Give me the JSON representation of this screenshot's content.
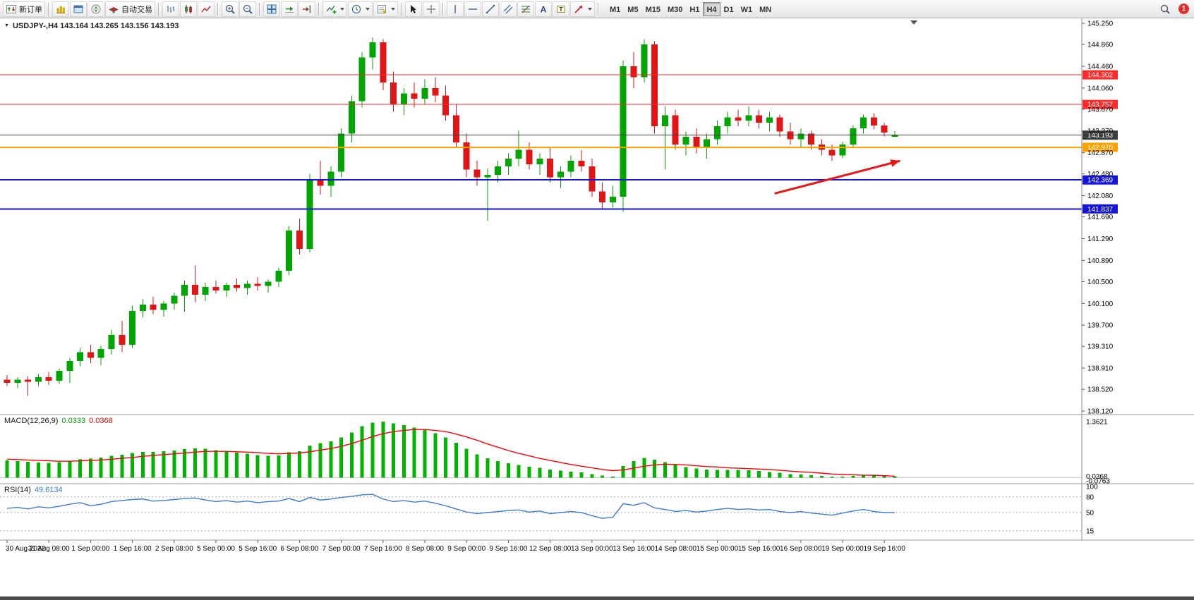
{
  "toolbar": {
    "new_order_label": "新订单",
    "auto_trading_label": "自动交易",
    "timeframes": [
      "M1",
      "M5",
      "M15",
      "M30",
      "H1",
      "H4",
      "D1",
      "W1",
      "MN"
    ],
    "active_timeframe": "H4",
    "notification_count": "1"
  },
  "panels": {
    "symbol_title": "USDJPY-,H4 143.164 143.265 143.156 143.193",
    "macd_name": "MACD(12,26,9)",
    "macd_value_main": "0.0333",
    "macd_value_signal": "0.0368",
    "rsi_name": "RSI(14)",
    "rsi_value": "49.6134"
  },
  "colors": {
    "candle_up": "#00a600",
    "candle_down": "#e01515",
    "macd_hist": "#00b400",
    "macd_signal": "#ff0000",
    "rsi_line": "#3b7bd4",
    "line_red": "#ff2a2a",
    "line_blue": "#1414dc",
    "line_orange": "#ffa200",
    "line_current": "#3c3c3c",
    "arrow": "#e81717",
    "axis_text": "#000000"
  },
  "chart_data": [
    {
      "id": "price",
      "type": "candlestick",
      "symbol": "USDJPY-",
      "timeframe": "H4",
      "ylim": [
        138.12,
        145.25
      ],
      "y_axis_labels": [
        "145.250",
        "144.860",
        "144.460",
        "144.060",
        "143.670",
        "143.270",
        "142.870",
        "142.480",
        "142.080",
        "141.690",
        "141.290",
        "140.890",
        "140.500",
        "140.100",
        "139.700",
        "139.310",
        "138.910",
        "138.520",
        "138.120"
      ],
      "time_labels": [
        {
          "index": 0,
          "label": "30 Aug 2022"
        },
        {
          "index": 4,
          "label": "31 Aug 08:00"
        },
        {
          "index": 8,
          "label": "1 Sep 00:00"
        },
        {
          "index": 12,
          "label": "1 Sep 16:00"
        },
        {
          "index": 16,
          "label": "2 Sep 08:00"
        },
        {
          "index": 20,
          "label": "5 Sep 00:00"
        },
        {
          "index": 24,
          "label": "5 Sep 16:00"
        },
        {
          "index": 28,
          "label": "6 Sep 08:00"
        },
        {
          "index": 32,
          "label": "7 Sep 00:00"
        },
        {
          "index": 36,
          "label": "7 Sep 16:00"
        },
        {
          "index": 40,
          "label": "8 Sep 08:00"
        },
        {
          "index": 44,
          "label": "9 Sep 00:00"
        },
        {
          "index": 48,
          "label": "9 Sep 16:00"
        },
        {
          "index": 52,
          "label": "12 Sep 08:00"
        },
        {
          "index": 56,
          "label": "13 Sep 00:00"
        },
        {
          "index": 60,
          "label": "13 Sep 16:00"
        },
        {
          "index": 64,
          "label": "14 Sep 08:00"
        },
        {
          "index": 68,
          "label": "15 Sep 00:00"
        },
        {
          "index": 72,
          "label": "15 Sep 16:00"
        },
        {
          "index": 76,
          "label": "16 Sep 08:00"
        },
        {
          "index": 80,
          "label": "19 Sep 00:00"
        },
        {
          "index": 84,
          "label": "19 Sep 16:00"
        }
      ],
      "candles": [
        [
          138.7,
          138.78,
          138.58,
          138.64
        ],
        [
          138.64,
          138.74,
          138.54,
          138.7
        ],
        [
          138.7,
          138.76,
          138.4,
          138.66
        ],
        [
          138.66,
          138.8,
          138.58,
          138.74
        ],
        [
          138.74,
          138.84,
          138.6,
          138.68
        ],
        [
          138.68,
          138.9,
          138.62,
          138.86
        ],
        [
          138.86,
          139.1,
          138.64,
          139.04
        ],
        [
          139.04,
          139.28,
          138.94,
          139.2
        ],
        [
          139.2,
          139.34,
          139.0,
          139.1
        ],
        [
          139.1,
          139.32,
          138.96,
          139.26
        ],
        [
          139.26,
          139.62,
          139.16,
          139.52
        ],
        [
          139.52,
          139.78,
          139.2,
          139.34
        ],
        [
          139.34,
          140.06,
          139.28,
          139.96
        ],
        [
          139.96,
          140.18,
          139.84,
          140.08
        ],
        [
          140.08,
          140.22,
          139.9,
          139.98
        ],
        [
          139.98,
          140.14,
          139.86,
          140.1
        ],
        [
          140.1,
          140.3,
          139.98,
          140.24
        ],
        [
          140.24,
          140.52,
          139.95,
          140.44
        ],
        [
          140.44,
          140.8,
          140.12,
          140.26
        ],
        [
          140.26,
          140.48,
          140.14,
          140.4
        ],
        [
          140.4,
          140.52,
          140.28,
          140.34
        ],
        [
          140.34,
          140.48,
          140.22,
          140.44
        ],
        [
          140.44,
          140.56,
          140.32,
          140.38
        ],
        [
          140.38,
          140.52,
          140.26,
          140.46
        ],
        [
          140.46,
          140.58,
          140.34,
          140.42
        ],
        [
          140.42,
          140.54,
          140.3,
          140.5
        ],
        [
          140.5,
          140.76,
          140.4,
          140.7
        ],
        [
          140.7,
          141.52,
          140.62,
          141.44
        ],
        [
          141.44,
          141.66,
          141.0,
          141.1
        ],
        [
          141.1,
          142.48,
          141.04,
          142.38
        ],
        [
          142.38,
          142.72,
          142.1,
          142.26
        ],
        [
          142.26,
          142.62,
          142.06,
          142.52
        ],
        [
          142.52,
          143.32,
          142.42,
          143.22
        ],
        [
          143.22,
          143.92,
          143.06,
          143.82
        ],
        [
          143.82,
          144.72,
          143.7,
          144.62
        ],
        [
          144.62,
          144.99,
          144.4,
          144.9
        ],
        [
          144.9,
          144.96,
          144.02,
          144.16
        ],
        [
          144.16,
          144.36,
          143.62,
          143.76
        ],
        [
          143.76,
          144.06,
          143.56,
          143.96
        ],
        [
          143.96,
          144.16,
          143.7,
          143.86
        ],
        [
          143.86,
          144.22,
          143.76,
          144.06
        ],
        [
          144.06,
          144.26,
          143.8,
          143.92
        ],
        [
          143.92,
          144.1,
          143.46,
          143.56
        ],
        [
          143.56,
          143.76,
          142.96,
          143.06
        ],
        [
          143.06,
          143.22,
          142.42,
          142.56
        ],
        [
          142.56,
          142.72,
          142.26,
          142.42
        ],
        [
          142.42,
          142.58,
          141.62,
          142.46
        ],
        [
          142.46,
          142.72,
          142.32,
          142.62
        ],
        [
          142.62,
          142.86,
          142.46,
          142.76
        ],
        [
          142.76,
          143.28,
          142.62,
          142.92
        ],
        [
          142.92,
          143.06,
          142.56,
          142.66
        ],
        [
          142.66,
          142.86,
          142.46,
          142.76
        ],
        [
          142.76,
          142.96,
          142.32,
          142.42
        ],
        [
          142.42,
          142.62,
          142.22,
          142.52
        ],
        [
          142.52,
          142.82,
          142.42,
          142.72
        ],
        [
          142.72,
          142.92,
          142.52,
          142.62
        ],
        [
          142.62,
          142.76,
          142.06,
          142.16
        ],
        [
          142.16,
          142.32,
          141.82,
          141.96
        ],
        [
          141.96,
          142.26,
          141.86,
          142.06
        ],
        [
          142.06,
          144.56,
          141.78,
          144.46
        ],
        [
          144.46,
          144.72,
          144.06,
          144.26
        ],
        [
          144.26,
          144.96,
          144.16,
          144.86
        ],
        [
          144.86,
          144.92,
          143.22,
          143.36
        ],
        [
          143.36,
          143.72,
          142.56,
          143.56
        ],
        [
          143.56,
          143.66,
          142.92,
          143.02
        ],
        [
          143.02,
          143.26,
          142.82,
          143.16
        ],
        [
          143.16,
          143.32,
          142.86,
          142.96
        ],
        [
          142.96,
          143.22,
          142.76,
          143.12
        ],
        [
          143.12,
          143.46,
          143.02,
          143.36
        ],
        [
          143.36,
          143.62,
          143.22,
          143.52
        ],
        [
          143.52,
          143.66,
          143.36,
          143.46
        ],
        [
          143.46,
          143.72,
          143.36,
          143.56
        ],
        [
          143.56,
          143.66,
          143.32,
          143.42
        ],
        [
          143.42,
          143.62,
          143.26,
          143.52
        ],
        [
          143.52,
          143.57,
          143.16,
          143.26
        ],
        [
          143.26,
          143.42,
          143.02,
          143.12
        ],
        [
          143.12,
          143.32,
          142.96,
          143.22
        ],
        [
          143.22,
          143.27,
          142.92,
          143.02
        ],
        [
          143.02,
          143.12,
          142.82,
          142.92
        ],
        [
          142.92,
          143.02,
          142.72,
          142.82
        ],
        [
          142.82,
          143.07,
          142.77,
          143.02
        ],
        [
          143.02,
          143.37,
          142.97,
          143.32
        ],
        [
          143.32,
          143.57,
          143.22,
          143.52
        ],
        [
          143.52,
          143.6,
          143.3,
          143.37
        ],
        [
          143.37,
          143.42,
          143.17,
          143.24
        ],
        [
          143.164,
          143.265,
          143.156,
          143.193
        ]
      ],
      "hlines": [
        {
          "price": 144.302,
          "label": "144.302",
          "color": "#ff2a2a",
          "width": 1
        },
        {
          "price": 143.757,
          "label": "143.757",
          "color": "#ff2a2a",
          "width": 1
        },
        {
          "price": 143.193,
          "label": "143.193",
          "color": "#3c3c3c",
          "width": 1
        },
        {
          "price": 142.97,
          "label": "142.970",
          "color": "#ffa200",
          "width": 2
        },
        {
          "price": 142.369,
          "label": "142.369",
          "color": "#1414dc",
          "width": 2
        },
        {
          "price": 141.837,
          "label": "141.837",
          "color": "#1414dc",
          "width": 2
        }
      ],
      "annotation_arrow": {
        "from_index": 73.5,
        "from_price": 142.12,
        "to_index": 85.5,
        "to_price": 142.72
      },
      "last_ohlc": {
        "open": 143.164,
        "high": 143.265,
        "low": 143.156,
        "close": 143.193
      }
    },
    {
      "id": "macd",
      "type": "bar",
      "name": "MACD",
      "params": [
        12,
        26,
        9
      ],
      "ylim": [
        -0.0763,
        1.3621
      ],
      "scale_labels": [
        "1.3621",
        "0.0368",
        "-0.0763"
      ],
      "current_histogram": 0.0333,
      "current_signal": 0.0368,
      "histogram": [
        0.42,
        0.4,
        0.39,
        0.37,
        0.36,
        0.38,
        0.41,
        0.45,
        0.46,
        0.49,
        0.53,
        0.56,
        0.6,
        0.63,
        0.63,
        0.64,
        0.66,
        0.69,
        0.71,
        0.7,
        0.67,
        0.64,
        0.61,
        0.58,
        0.55,
        0.53,
        0.54,
        0.62,
        0.64,
        0.78,
        0.84,
        0.88,
        0.98,
        1.1,
        1.25,
        1.34,
        1.36,
        1.32,
        1.28,
        1.22,
        1.16,
        1.08,
        0.98,
        0.85,
        0.7,
        0.57,
        0.47,
        0.4,
        0.35,
        0.31,
        0.27,
        0.24,
        0.2,
        0.17,
        0.15,
        0.13,
        0.09,
        0.05,
        0.03,
        0.28,
        0.4,
        0.48,
        0.44,
        0.38,
        0.31,
        0.26,
        0.22,
        0.2,
        0.19,
        0.19,
        0.19,
        0.18,
        0.16,
        0.14,
        0.12,
        0.09,
        0.08,
        0.06,
        0.04,
        0.03,
        0.03,
        0.04,
        0.05,
        0.05,
        0.04,
        0.0333
      ],
      "signal": [
        0.45,
        0.44,
        0.43,
        0.42,
        0.41,
        0.4,
        0.4,
        0.41,
        0.42,
        0.43,
        0.45,
        0.47,
        0.49,
        0.52,
        0.54,
        0.56,
        0.58,
        0.6,
        0.62,
        0.64,
        0.64,
        0.64,
        0.63,
        0.62,
        0.61,
        0.59,
        0.58,
        0.59,
        0.6,
        0.63,
        0.67,
        0.71,
        0.76,
        0.83,
        0.91,
        1.0,
        1.07,
        1.12,
        1.15,
        1.17,
        1.17,
        1.15,
        1.12,
        1.06,
        0.99,
        0.91,
        0.82,
        0.74,
        0.66,
        0.59,
        0.53,
        0.47,
        0.42,
        0.37,
        0.32,
        0.28,
        0.24,
        0.2,
        0.17,
        0.19,
        0.23,
        0.28,
        0.31,
        0.33,
        0.32,
        0.31,
        0.29,
        0.27,
        0.26,
        0.24,
        0.23,
        0.22,
        0.21,
        0.2,
        0.18,
        0.16,
        0.14,
        0.13,
        0.11,
        0.09,
        0.08,
        0.07,
        0.06,
        0.06,
        0.05,
        0.0368
      ]
    },
    {
      "id": "rsi",
      "type": "line",
      "name": "RSI",
      "period": 14,
      "ylim": [
        0,
        100
      ],
      "levels": [
        80,
        50,
        15
      ],
      "scale_labels": [
        "100",
        "80",
        "50",
        "15"
      ],
      "current": 49.6134,
      "values": [
        58,
        60,
        57,
        61,
        59,
        62,
        66,
        69,
        63,
        66,
        71,
        73,
        75,
        76,
        72,
        73,
        75,
        77,
        78,
        74,
        71,
        73,
        70,
        72,
        69,
        71,
        72,
        77,
        71,
        79,
        74,
        76,
        79,
        81,
        84,
        85,
        76,
        71,
        73,
        70,
        72,
        68,
        63,
        57,
        51,
        48,
        50,
        52,
        54,
        55,
        51,
        53,
        48,
        50,
        52,
        50,
        44,
        39,
        41,
        67,
        64,
        69,
        59,
        56,
        52,
        54,
        51,
        53,
        56,
        58,
        56,
        57,
        55,
        56,
        52,
        50,
        52,
        49,
        47,
        45,
        49,
        53,
        56,
        52,
        50,
        49.6134
      ]
    }
  ]
}
